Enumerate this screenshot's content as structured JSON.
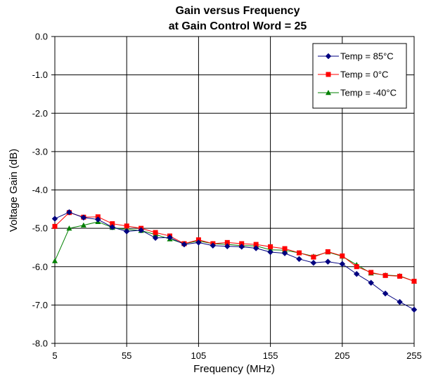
{
  "chart_data": {
    "type": "line",
    "title": "Gain versus Frequency",
    "subtitle": "at Gain Control Word = 25",
    "xlabel": "Frequency (MHz)",
    "ylabel": "Voltage Gain (dB)",
    "xlim": [
      5,
      255
    ],
    "ylim": [
      -8.0,
      0.0
    ],
    "x_ticks": [
      "5",
      "55",
      "105",
      "155",
      "205",
      "255"
    ],
    "x_tick_values": [
      5,
      55,
      105,
      155,
      205,
      255
    ],
    "y_ticks": [
      "0.0",
      "-1.0",
      "-2.0",
      "-3.0",
      "-4.0",
      "-5.0",
      "-6.0",
      "-7.0",
      "-8.0"
    ],
    "y_tick_values": [
      0,
      -1,
      -2,
      -3,
      -4,
      -5,
      -6,
      -7,
      -8
    ],
    "grid": true,
    "legend_position": "top-right",
    "x": [
      5,
      15,
      25,
      35,
      45,
      55,
      65,
      75,
      85,
      95,
      105,
      115,
      125,
      135,
      145,
      155,
      165,
      175,
      185,
      195,
      205,
      215,
      225,
      235,
      245,
      255
    ],
    "series": [
      {
        "name": "Temp = 85°C",
        "color": "#000080",
        "marker": "diamond",
        "values": [
          -4.75,
          -4.58,
          -4.72,
          -4.77,
          -4.97,
          -5.08,
          -5.05,
          -5.25,
          -5.24,
          -5.42,
          -5.37,
          -5.45,
          -5.47,
          -5.48,
          -5.52,
          -5.62,
          -5.65,
          -5.8,
          -5.9,
          -5.87,
          -5.93,
          -6.19,
          -6.42,
          -6.7,
          -6.92,
          -7.12
        ]
      },
      {
        "name": "Temp = 0°C",
        "color": "#ff0000",
        "marker": "square",
        "values": [
          -4.95,
          -4.59,
          -4.71,
          -4.7,
          -4.88,
          -4.94,
          -5.0,
          -5.11,
          -5.2,
          -5.4,
          -5.3,
          -5.4,
          -5.37,
          -5.4,
          -5.42,
          -5.48,
          -5.53,
          -5.64,
          -5.75,
          -5.61,
          -5.72,
          -6.0,
          -6.15,
          -6.23,
          -6.25,
          -6.38
        ]
      },
      {
        "name": "Temp = -40°C",
        "color": "#008000",
        "marker": "triangle",
        "values": [
          -5.85,
          -5.0,
          -4.92,
          -4.83,
          -4.98,
          -5.03,
          -5.06,
          -5.16,
          -5.28,
          -5.4,
          -5.33,
          -5.4,
          -5.42,
          -5.45,
          -5.46,
          -5.56,
          -5.57,
          -5.64,
          -5.73,
          -5.62,
          -5.73,
          -5.95,
          -6.17,
          -6.22,
          -6.24,
          -6.38
        ]
      }
    ]
  }
}
